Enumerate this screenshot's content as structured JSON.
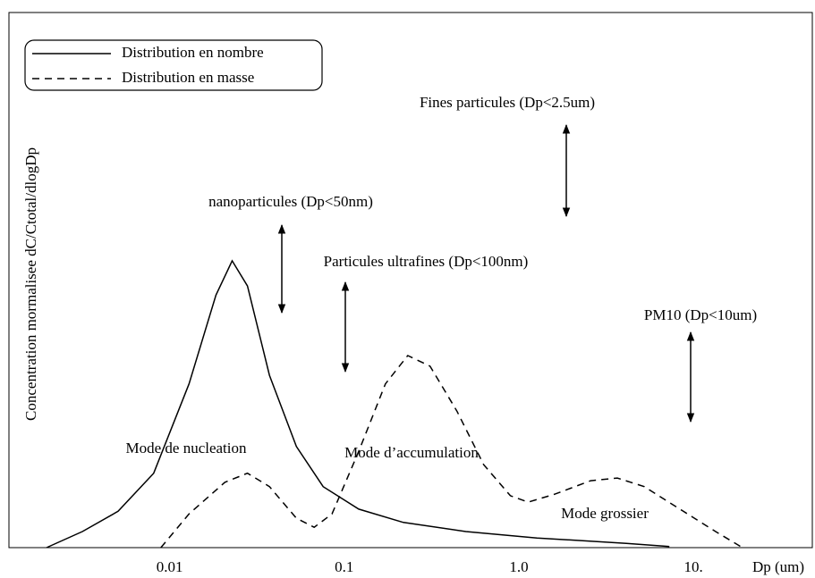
{
  "chart_data": {
    "type": "line",
    "x_label": "Dp (um)",
    "y_label": "Concentration mormalisee dC/Ctotal/dlogDp",
    "xscale": "log",
    "xlim": [
      0.0012,
      48
    ],
    "ylim": [
      0,
      1
    ],
    "xticks": [
      0.01,
      0.1,
      {
        "value": 1,
        "label": "1.0"
      },
      {
        "value": 10,
        "label": "10."
      }
    ],
    "legend": "upper left",
    "series": [
      {
        "name": "Distribution en nombre",
        "color": "#000000",
        "style": "solid",
        "x": [
          0.00197,
          0.00316,
          0.00506,
          0.0081,
          0.0129,
          0.0184,
          0.0228,
          0.0279,
          0.0373,
          0.0532,
          0.0757,
          0.121,
          0.218,
          0.497,
          1.27,
          4.13,
          7.28
        ],
        "values": [
          0,
          0.03,
          0.068,
          0.139,
          0.306,
          0.472,
          0.536,
          0.489,
          0.322,
          0.189,
          0.114,
          0.072,
          0.047,
          0.03,
          0.018,
          0.008,
          0.002
        ]
      },
      {
        "name": "Distribution en masse",
        "color": "#000000",
        "style": "dashed",
        "x": [
          0.0089,
          0.0129,
          0.0207,
          0.0279,
          0.0373,
          0.0532,
          0.0673,
          0.0851,
          0.121,
          0.172,
          0.231,
          0.31,
          0.442,
          0.629,
          0.895,
          1.13,
          1.61,
          2.58,
          3.67,
          5.23,
          8.37,
          13.4,
          19.1
        ],
        "values": [
          0,
          0.063,
          0.122,
          0.139,
          0.114,
          0.055,
          0.038,
          0.063,
          0.18,
          0.306,
          0.359,
          0.339,
          0.255,
          0.155,
          0.097,
          0.085,
          0.1,
          0.125,
          0.13,
          0.114,
          0.072,
          0.03,
          0
        ]
      }
    ],
    "annotations": [
      "Fines particules (Dp<2.5um)",
      "nanoparticules (Dp<50nm)",
      "Particules ultrafines (Dp<100nm)",
      "PM10 (Dp<10um)",
      "Mode de nucleation",
      "Mode d’accumulation",
      "Mode grossier"
    ]
  }
}
